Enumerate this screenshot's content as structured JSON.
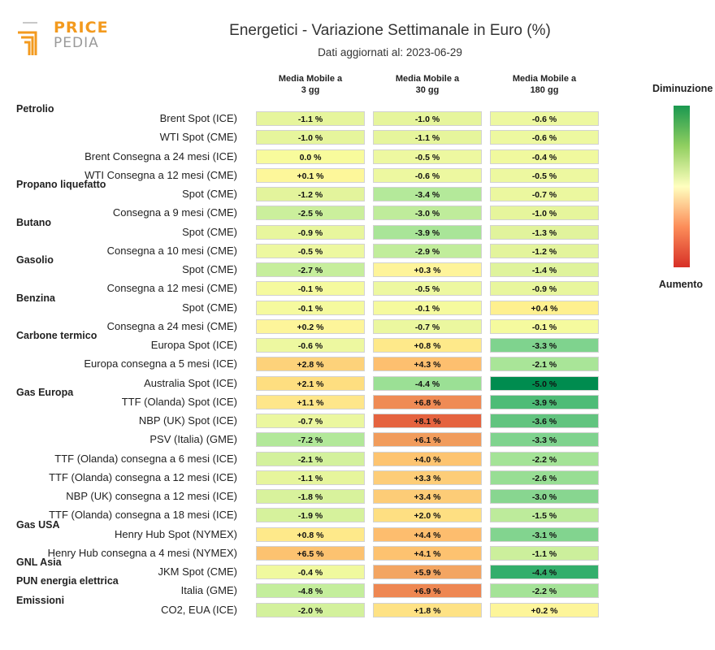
{
  "logo": {
    "line1": "PRICE",
    "line2": "PEDIA"
  },
  "title": "Energetici - Variazione Settimanale in Euro (%)",
  "subtitle": "Dati aggiornati al: 2023-06-29",
  "columns": [
    {
      "line1": "Media Mobile a",
      "line2": "3 gg"
    },
    {
      "line1": "Media Mobile a",
      "line2": "30 gg"
    },
    {
      "line1": "Media Mobile a",
      "line2": "180 gg"
    }
  ],
  "legend": {
    "top": "Diminuzione",
    "bottom": "Aumento",
    "colors": [
      "#1a9850",
      "#91cf60",
      "#ffffbf",
      "#fc8d59",
      "#d73027"
    ]
  },
  "chart_data": {
    "type": "heatmap",
    "title": "Energetici - Variazione Settimanale in Euro (%)",
    "columns": [
      "Media Mobile a 3 gg",
      "Media Mobile a 30 gg",
      "Media Mobile a 180 gg"
    ],
    "unit": "%",
    "rows": [
      {
        "group": "Petrolio",
        "label": "Brent Spot (ICE)",
        "values": [
          "-1.1 %",
          "-1.0 %",
          "-0.6 %"
        ],
        "colors": [
          "#e6f59c",
          "#e6f59c",
          "#edf8a0"
        ]
      },
      {
        "group": "",
        "label": "WTI Spot (CME)",
        "values": [
          "-1.0 %",
          "-1.1 %",
          "-0.6 %"
        ],
        "colors": [
          "#e6f59c",
          "#e6f59c",
          "#edf8a0"
        ]
      },
      {
        "group": "",
        "label": "Brent Consegna a 24 mesi (ICE)",
        "values": [
          "0.0 %",
          "-0.5 %",
          "-0.4 %"
        ],
        "colors": [
          "#f8fb9c",
          "#edf8a0",
          "#f0f99e"
        ]
      },
      {
        "group": "",
        "label": "WTI Consegna a 12 mesi (CME)",
        "values": [
          "+0.1 %",
          "-0.6 %",
          "-0.5 %"
        ],
        "colors": [
          "#fdf79a",
          "#edf8a0",
          "#edf8a0"
        ]
      },
      {
        "group": "Propano liquefatto",
        "label": "Spot (CME)",
        "values": [
          "-1.2 %",
          "-3.4 %",
          "-0.7 %"
        ],
        "colors": [
          "#e3f49c",
          "#b4e99a",
          "#ebf79f"
        ]
      },
      {
        "group": "",
        "label": "Consegna a 9 mesi (CME)",
        "values": [
          "-2.5 %",
          "-3.0 %",
          "-1.0 %"
        ],
        "colors": [
          "#cbef9c",
          "#bfec9b",
          "#e6f59c"
        ]
      },
      {
        "group": "Butano",
        "label": "Spot (CME)",
        "values": [
          "-0.9 %",
          "-3.9 %",
          "-1.3 %"
        ],
        "colors": [
          "#e8f69d",
          "#a9e598",
          "#e1f39c"
        ]
      },
      {
        "group": "",
        "label": "Consegna a 10 mesi (CME)",
        "values": [
          "-0.5 %",
          "-2.9 %",
          "-1.2 %"
        ],
        "colors": [
          "#edf8a0",
          "#c1ed9b",
          "#e3f49c"
        ]
      },
      {
        "group": "Gasolio",
        "label": "Spot (CME)",
        "values": [
          "-2.7 %",
          "+0.3 %",
          "-1.4 %"
        ],
        "colors": [
          "#c6ee9c",
          "#fef49a",
          "#dff39c"
        ]
      },
      {
        "group": "",
        "label": "Consegna a 12 mesi (CME)",
        "values": [
          "-0.1 %",
          "-0.5 %",
          "-0.9 %"
        ],
        "colors": [
          "#f5fa9e",
          "#edf8a0",
          "#e8f69d"
        ]
      },
      {
        "group": "Benzina",
        "label": "Spot (CME)",
        "values": [
          "-0.1 %",
          "-0.1 %",
          "+0.4 %"
        ],
        "colors": [
          "#f5fa9e",
          "#f5fa9e",
          "#fef08f"
        ]
      },
      {
        "group": "",
        "label": "Consegna a 24 mesi (CME)",
        "values": [
          "+0.2 %",
          "-0.7 %",
          "-0.1 %"
        ],
        "colors": [
          "#fdf59a",
          "#ebf79f",
          "#f5fa9e"
        ]
      },
      {
        "group": "Carbone termico",
        "label": "Europa Spot (ICE)",
        "values": [
          "-0.6 %",
          "+0.8 %",
          "-3.3 %"
        ],
        "colors": [
          "#edf8a0",
          "#fee98a",
          "#7fd38e"
        ]
      },
      {
        "group": "",
        "label": "Europa consegna a 5 mesi (ICE)",
        "values": [
          "+2.8 %",
          "+4.3 %",
          "-2.1 %"
        ],
        "colors": [
          "#fdd27a",
          "#fdbf6f",
          "#a9e598"
        ]
      },
      {
        "group": "",
        "label": "Australia Spot (ICE)",
        "values": [
          "+2.1 %",
          "-4.4 %",
          "-5.0 %"
        ],
        "colors": [
          "#fede80",
          "#9be095",
          "#008c4f"
        ]
      },
      {
        "group": "Gas Europa",
        "label": "TTF (Olanda) Spot (ICE)",
        "values": [
          "+1.1 %",
          "+6.8 %",
          "-3.9 %"
        ],
        "colors": [
          "#fee68a",
          "#ef8b55",
          "#4ebc77"
        ]
      },
      {
        "group": "",
        "label": "NBP (UK) Spot (ICE)",
        "values": [
          "-0.7 %",
          "+8.1 %",
          "-3.6 %"
        ],
        "colors": [
          "#ebf79f",
          "#e5633f",
          "#62c47f"
        ]
      },
      {
        "group": "",
        "label": "PSV (Italia) (GME)",
        "values": [
          "-7.2 %",
          "+6.1 %",
          "-3.3 %"
        ],
        "colors": [
          "#b2e899",
          "#f19c5c",
          "#7fd38e"
        ]
      },
      {
        "group": "",
        "label": "TTF (Olanda) consegna a 6 mesi (ICE)",
        "values": [
          "-2.1 %",
          "+4.0 %",
          "-2.2 %"
        ],
        "colors": [
          "#d3f19c",
          "#fdc470",
          "#a4e397"
        ]
      },
      {
        "group": "",
        "label": "TTF (Olanda) consegna a 12 mesi (ICE)",
        "values": [
          "-1.1 %",
          "+3.3 %",
          "-2.6 %"
        ],
        "colors": [
          "#e6f59c",
          "#fdcd78",
          "#98de94"
        ]
      },
      {
        "group": "",
        "label": "NBP (UK) consegna a 12 mesi (ICE)",
        "values": [
          "-1.8 %",
          "+3.4 %",
          "-3.0 %"
        ],
        "colors": [
          "#d8f29c",
          "#fdcc77",
          "#88d690"
        ]
      },
      {
        "group": "",
        "label": "TTF (Olanda) consegna a 18 mesi (ICE)",
        "values": [
          "-1.9 %",
          "+2.0 %",
          "-1.5 %"
        ],
        "colors": [
          "#d6f29c",
          "#fedf82",
          "#bdeb9b"
        ]
      },
      {
        "group": "Gas USA",
        "label": "Henry Hub Spot (NYMEX)",
        "values": [
          "+0.8 %",
          "+4.4 %",
          "-3.1 %"
        ],
        "colors": [
          "#fee98a",
          "#fdbd6e",
          "#82d48f"
        ]
      },
      {
        "group": "",
        "label": "Henry Hub consegna a 4 mesi (NYMEX)",
        "values": [
          "+6.5 %",
          "+4.1 %",
          "-1.1 %"
        ],
        "colors": [
          "#fcc270",
          "#fdc270",
          "#ccef9c"
        ]
      },
      {
        "group": "GNL Asia",
        "label": "JKM Spot (CME)",
        "values": [
          "-0.4 %",
          "+5.9 %",
          "-4.4 %"
        ],
        "colors": [
          "#f0f99e",
          "#f3a562",
          "#33ae6c"
        ]
      },
      {
        "group": "PUN energia elettrica",
        "label": "Italia (GME)",
        "values": [
          "-4.8 %",
          "+6.9 %",
          "-2.2 %"
        ],
        "colors": [
          "#c4ee9c",
          "#ee8752",
          "#a4e397"
        ]
      },
      {
        "group": "Emissioni",
        "label": "CO2, EUA (ICE)",
        "values": [
          "-2.0 %",
          "+1.8 %",
          "+0.2 %"
        ],
        "colors": [
          "#d3f19c",
          "#fee285",
          "#fdf59a"
        ]
      }
    ]
  }
}
